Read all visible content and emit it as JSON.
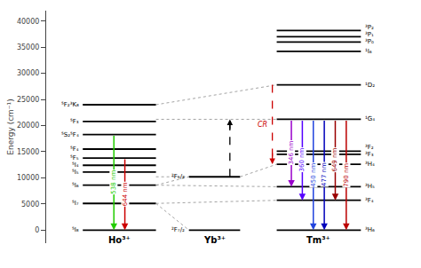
{
  "chart_data": {
    "type": "energy_levels",
    "ylabel": "Energy (cm⁻¹)",
    "ylim": [
      -2500,
      42000
    ],
    "yticks": [
      0,
      5000,
      10000,
      15000,
      20000,
      25000,
      30000,
      35000,
      40000
    ],
    "grid": false,
    "ions": [
      {
        "name": "Ho³⁺",
        "color": "#000000",
        "levels": [
          {
            "energy": 0,
            "label": "⁵I₈"
          },
          {
            "energy": 5100,
            "label": "⁵I₇"
          },
          {
            "energy": 8600,
            "label": "⁵I₆"
          },
          {
            "energy": 11100,
            "label": "⁵I₅"
          },
          {
            "energy": 12400,
            "label": "⁵I₄"
          },
          {
            "energy": 13800,
            "label": "⁵F₅"
          },
          {
            "energy": 15500,
            "label": "⁵F₄"
          },
          {
            "energy": 18300,
            "label": "⁵S₂⁵F₄"
          },
          {
            "energy": 20800,
            "label": "⁵F₃"
          },
          {
            "energy": 24000,
            "label": "⁵F₂³K₈"
          }
        ]
      },
      {
        "name": "Yb³⁺",
        "color": "#000000",
        "levels": [
          {
            "energy": 0,
            "label": "²F₇/₂"
          },
          {
            "energy": 10200,
            "label": "²F₅/₂"
          }
        ]
      },
      {
        "name": "Tm³⁺",
        "color": "#000000",
        "levels": [
          {
            "energy": 0,
            "label": "³H₆"
          },
          {
            "energy": 5700,
            "label": "³F₄"
          },
          {
            "energy": 8300,
            "label": "³H₅"
          },
          {
            "energy": 12600,
            "label": "³H₄"
          },
          {
            "energy": 14500,
            "label": "³F₃"
          },
          {
            "energy": 15100,
            "label": "³F₂"
          },
          {
            "energy": 21200,
            "label": "¹G₄"
          },
          {
            "energy": 27800,
            "label": "¹D₂"
          },
          {
            "energy": 34200,
            "label": "¹I₆"
          },
          {
            "energy": 36000,
            "label": "³P₀"
          },
          {
            "energy": 37000,
            "label": "³P₁"
          },
          {
            "energy": 38200,
            "label": "³P₂"
          }
        ]
      }
    ],
    "transitions": [
      {
        "ion": "Ho³⁺",
        "from": 18300,
        "to": 0,
        "color": "#22cc00",
        "label": "538 nm",
        "line_style": "solid"
      },
      {
        "ion": "Ho³⁺",
        "from": 13800,
        "to": 0,
        "color": "#cc0000",
        "label": "644 nm",
        "line_style": "solid"
      },
      {
        "ion": "Tm³⁺",
        "from": 21200,
        "to": 8300,
        "color": "#9900cc",
        "label": "346 nm",
        "line_style": "solid"
      },
      {
        "ion": "Tm³⁺",
        "from": 21200,
        "to": 5700,
        "color": "#5500ff",
        "label": "360 nm",
        "line_style": "solid"
      },
      {
        "ion": "Tm³⁺",
        "from": 21200,
        "to": 0,
        "color": "#2244dd",
        "label": "450 nm",
        "line_style": "solid"
      },
      {
        "ion": "Tm³⁺",
        "from": 21200,
        "to": 0,
        "color": "#0000bb",
        "label": "477 nm",
        "line_style": "solid"
      },
      {
        "ion": "Tm³⁺",
        "from": 21200,
        "to": 5700,
        "color": "#990000",
        "label": "649 nm",
        "line_style": "solid"
      },
      {
        "ion": "Tm³⁺",
        "from": 21200,
        "to": 0,
        "color": "#bb0000",
        "label": "790 nm",
        "line_style": "solid"
      },
      {
        "ion": "Tm³⁺",
        "from": 27800,
        "to": 12600,
        "color": "#cc0000",
        "label": "CR",
        "line_style": "dashed"
      },
      {
        "ion": "Yb³⁺",
        "from": 10200,
        "to": 21200,
        "color": "#000000",
        "line_style": "dashed"
      }
    ],
    "links": {
      "color": "#808080",
      "line_style": "dotted",
      "pairs": [
        {
          "from": [
            "Ho³⁺",
            5100
          ],
          "to": [
            "Yb³⁺",
            0
          ]
        },
        {
          "from": [
            "Ho³⁺",
            5100
          ],
          "to": [
            "Tm³⁺",
            5700
          ]
        },
        {
          "from": [
            "Ho³⁺",
            8600
          ],
          "to": [
            "Yb³⁺",
            10200
          ]
        },
        {
          "from": [
            "Ho³⁺",
            8600
          ],
          "to": [
            "Tm³⁺",
            8300
          ]
        },
        {
          "from": [
            "Ho³⁺",
            21200
          ],
          "to": [
            "Tm³⁺",
            21200
          ]
        },
        {
          "from": [
            "Ho³⁺",
            24000
          ],
          "to": [
            "Tm³⁺",
            27800
          ]
        },
        {
          "from": [
            "Yb³⁺",
            10200
          ],
          "to": [
            "Tm³⁺",
            12600
          ]
        },
        {
          "from": [
            "Ho³⁺",
            10200
          ],
          "to": [
            "Yb³⁺",
            10200
          ]
        }
      ]
    }
  }
}
